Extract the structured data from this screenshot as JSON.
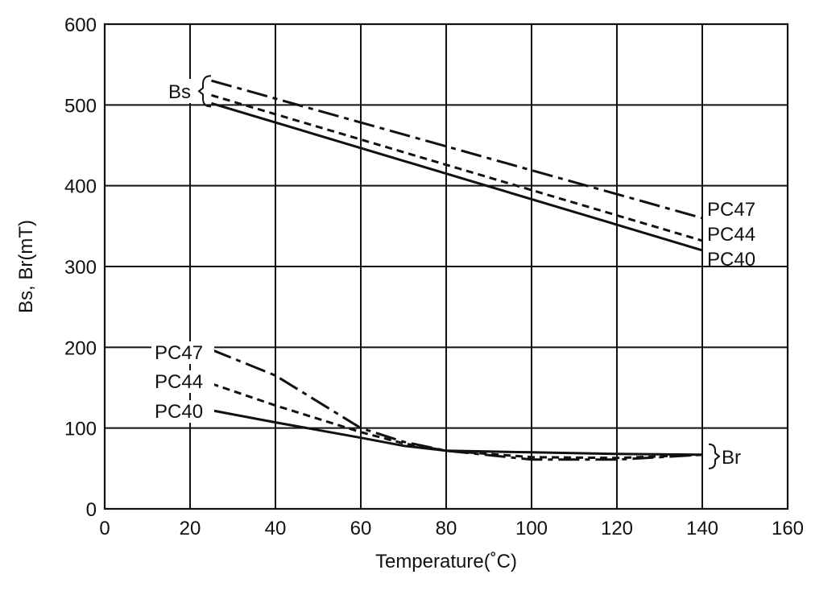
{
  "chart_data": {
    "type": "line",
    "title": "",
    "xlabel": "Temperature(˚C)",
    "ylabel": "Bs, Br(mT)",
    "xlim": [
      0,
      160
    ],
    "ylim": [
      0,
      600
    ],
    "xticks": [
      0,
      20,
      40,
      60,
      80,
      100,
      120,
      140,
      160
    ],
    "yticks": [
      0,
      100,
      200,
      300,
      400,
      500,
      600
    ],
    "grid": true,
    "group_labels": {
      "bs": "Bs",
      "br": "Br"
    },
    "series": [
      {
        "name": "PC47",
        "group": "Bs",
        "style": "dashdot",
        "x": [
          25,
          140
        ],
        "y": [
          530,
          360
        ]
      },
      {
        "name": "PC44",
        "group": "Bs",
        "style": "dashed",
        "x": [
          25,
          140
        ],
        "y": [
          512,
          332
        ]
      },
      {
        "name": "PC40",
        "group": "Bs",
        "style": "solid",
        "x": [
          25,
          140
        ],
        "y": [
          502,
          320
        ]
      },
      {
        "name": "PC47",
        "group": "Br",
        "style": "dashdot",
        "x": [
          25,
          40,
          60,
          70,
          80,
          100,
          120,
          140
        ],
        "y": [
          197,
          165,
          100,
          83,
          72,
          61,
          61,
          67
        ]
      },
      {
        "name": "PC44",
        "group": "Br",
        "style": "dashed",
        "x": [
          25,
          40,
          60,
          70,
          80,
          100,
          120,
          140
        ],
        "y": [
          155,
          128,
          95,
          81,
          72,
          64,
          63,
          67
        ]
      },
      {
        "name": "PC40",
        "group": "Br",
        "style": "solid",
        "x": [
          25,
          40,
          60,
          70,
          80,
          100,
          120,
          140
        ],
        "y": [
          122,
          107,
          88,
          78,
          72,
          70,
          68,
          67
        ]
      }
    ]
  }
}
